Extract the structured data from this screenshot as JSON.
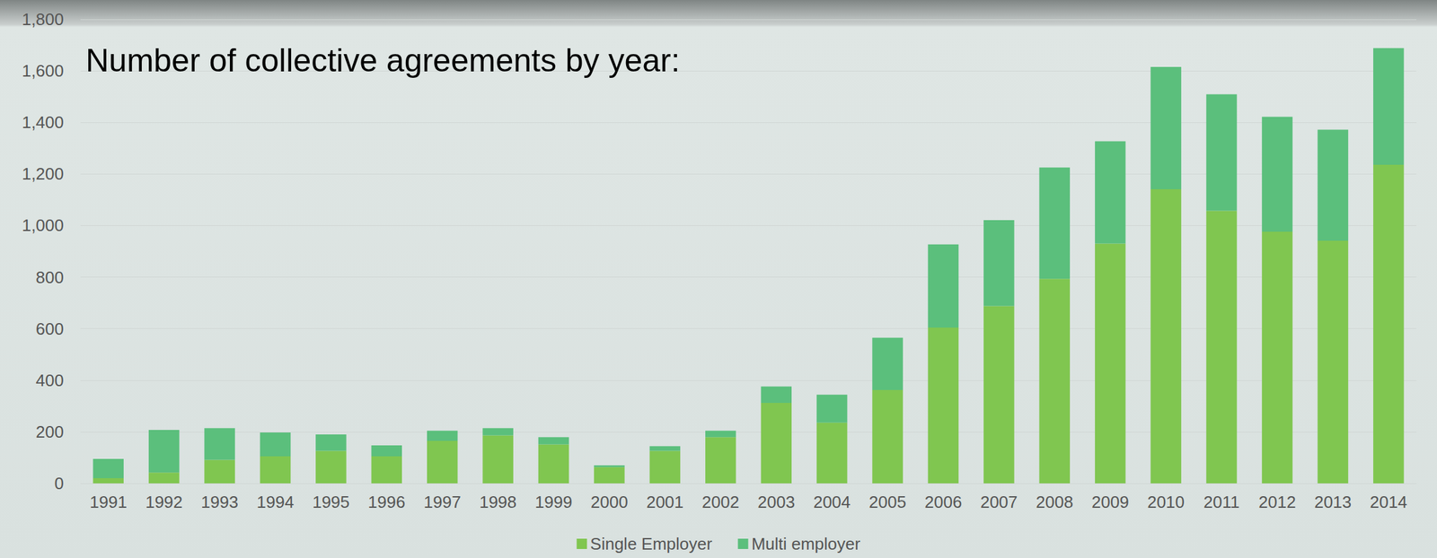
{
  "chart_data": {
    "type": "bar",
    "title": "Number of collective agreements by year:",
    "categories": [
      "1991",
      "1992",
      "1993",
      "1994",
      "1995",
      "1996",
      "1997",
      "1998",
      "1999",
      "2000",
      "2001",
      "2002",
      "2003",
      "2004",
      "2005",
      "2006",
      "2007",
      "2008",
      "2009",
      "2010",
      "2011",
      "2012",
      "2013",
      "2014"
    ],
    "series": [
      {
        "name": "Single Employer",
        "color": "#80c650",
        "values": [
          20,
          42,
          91,
          105,
          126,
          105,
          165,
          186,
          151,
          63,
          126,
          179,
          312,
          235,
          362,
          604,
          688,
          793,
          930,
          1141,
          1057,
          976,
          941,
          1236
        ]
      },
      {
        "name": "Multi employer",
        "color": "#5bbf7c",
        "values": [
          75,
          165,
          123,
          92,
          64,
          42,
          39,
          28,
          28,
          7,
          18,
          25,
          64,
          109,
          203,
          323,
          333,
          432,
          397,
          474,
          452,
          446,
          431,
          452
        ]
      }
    ],
    "stacked": true,
    "ylim": [
      0,
      1800
    ],
    "yticks": [
      0,
      200,
      400,
      600,
      800,
      1000,
      1200,
      1400,
      1600,
      1800
    ],
    "grid": true,
    "legend": "bottom"
  }
}
